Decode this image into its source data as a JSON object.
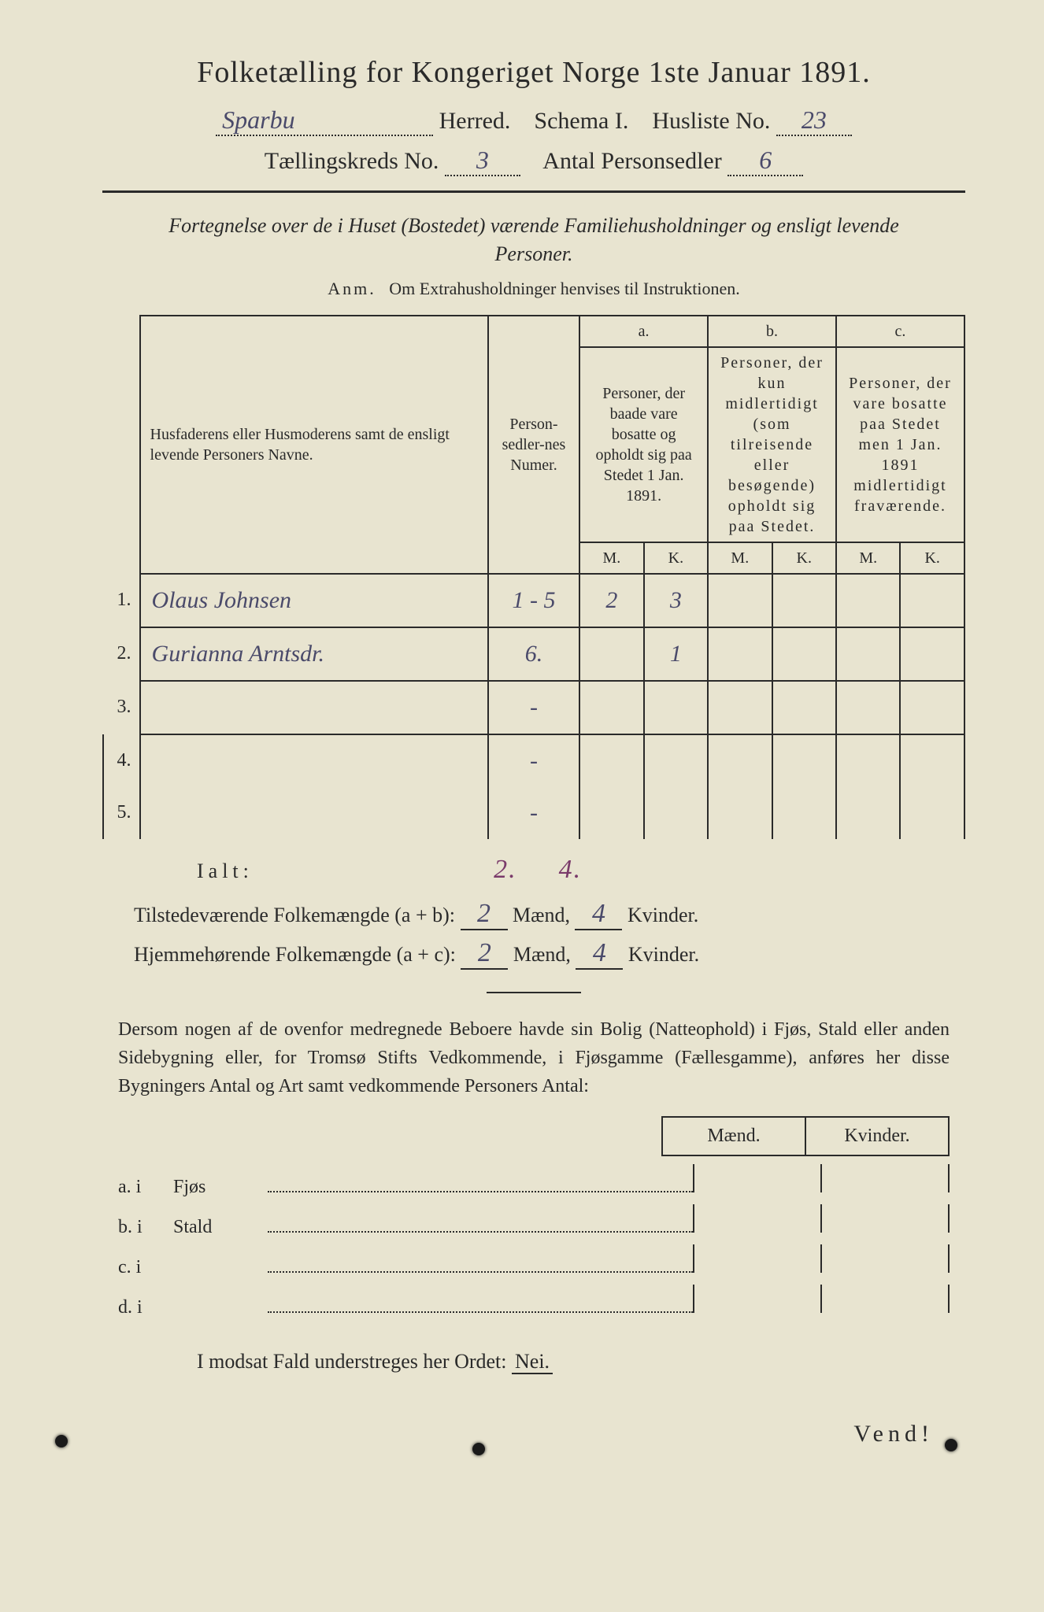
{
  "title": "Folketælling for Kongeriget Norge 1ste Januar 1891.",
  "header": {
    "herred_value": "Sparbu",
    "herred_label": "Herred.",
    "schema_label": "Schema I.",
    "husliste_label": "Husliste No.",
    "husliste_value": "23",
    "kreds_label": "Tællingskreds No.",
    "kreds_value": "3",
    "antal_label": "Antal Personsedler",
    "antal_value": "6"
  },
  "subtitle": "Fortegnelse over de i Huset (Bostedet) værende Familiehusholdninger og ensligt levende Personer.",
  "anm_label": "Anm.",
  "anm_text": "Om Extrahusholdninger henvises til Instruktionen.",
  "table": {
    "col_name": "Husfaderens eller Husmoderens samt de ensligt levende Personers Navne.",
    "col_num": "Person-sedler-nes Numer.",
    "col_a_top": "a.",
    "col_a_sub": "Personer, der baade vare bosatte og opholdt sig paa Stedet 1 Jan. 1891.",
    "col_b_top": "b.",
    "col_b_sub": "Personer, der kun midlertidigt (som tilreisende eller besøgende) opholdt sig paa Stedet.",
    "col_c_top": "c.",
    "col_c_sub": "Personer, der vare bosatte paa Stedet men 1 Jan. 1891 midlertidigt fraværende.",
    "m": "M.",
    "k": "K.",
    "rows": [
      {
        "n": "1.",
        "name": "Olaus Johnsen",
        "num": "1 - 5",
        "am": "2",
        "ak": "3",
        "bm": "",
        "bk": "",
        "cm": "",
        "ck": ""
      },
      {
        "n": "2.",
        "name": "Gurianna Arntsdr.",
        "num": "6.",
        "am": "",
        "ak": "1",
        "bm": "",
        "bk": "",
        "cm": "",
        "ck": ""
      },
      {
        "n": "3.",
        "name": "",
        "num": "-",
        "am": "",
        "ak": "",
        "bm": "",
        "bk": "",
        "cm": "",
        "ck": ""
      },
      {
        "n": "4.",
        "name": "",
        "num": "-",
        "am": "",
        "ak": "",
        "bm": "",
        "bk": "",
        "cm": "",
        "ck": ""
      },
      {
        "n": "5.",
        "name": "",
        "num": "-",
        "am": "",
        "ak": "",
        "bm": "",
        "bk": "",
        "cm": "",
        "ck": ""
      }
    ]
  },
  "ialt": {
    "label": "Ialt:",
    "m": "2.",
    "k": "4."
  },
  "totals": {
    "line1_label": "Tilstedeværende Folkemængde (a + b):",
    "line1_m": "2",
    "line1_k": "4",
    "line2_label": "Hjemmehørende Folkemængde (a + c):",
    "line2_m": "2",
    "line2_k": "4",
    "maend": "Mænd,",
    "kvinder": "Kvinder."
  },
  "para": "Dersom nogen af de ovenfor medregnede Beboere havde sin Bolig (Natteophold) i Fjøs, Stald eller anden Sidebygning eller, for Tromsø Stifts Vedkommende, i Fjøsgamme (Fællesgamme), anføres her disse Bygningers Antal og Art samt vedkommende Personers Antal:",
  "list_header": {
    "m": "Mænd.",
    "k": "Kvinder."
  },
  "list": [
    {
      "lab": "a.  i",
      "word": "Fjøs"
    },
    {
      "lab": "b.  i",
      "word": "Stald"
    },
    {
      "lab": "c.  i",
      "word": ""
    },
    {
      "lab": "d.  i",
      "word": ""
    }
  ],
  "nei_line": "I modsat Fald understreges her Ordet:",
  "nei": "Nei.",
  "vend": "Vend!"
}
